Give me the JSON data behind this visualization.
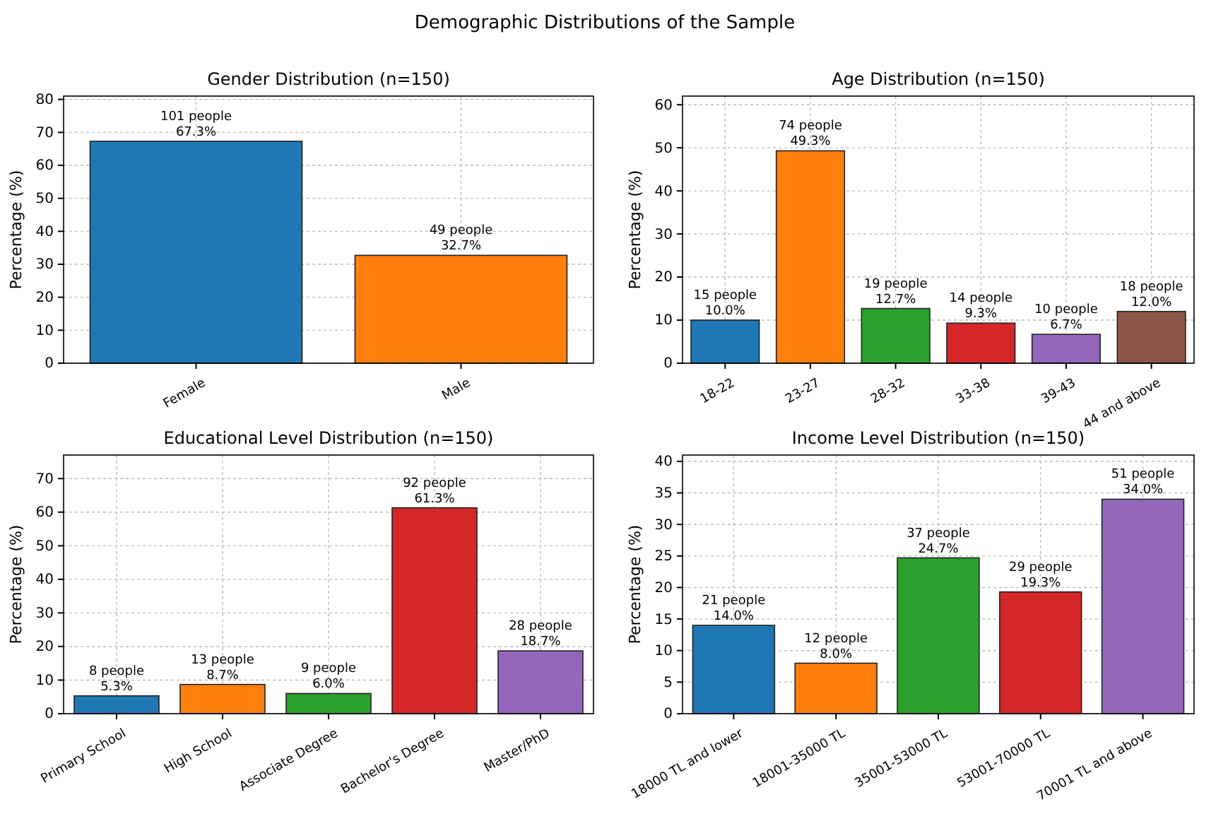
{
  "chart_data": [
    {
      "type": "bar",
      "title": "Gender Distribution (n=150)",
      "ylabel": "Percentage (%)",
      "annotations": [
        "Demographic Distributions of the Sample"
      ],
      "categories": [
        "Female",
        "Male"
      ],
      "values": [
        67.3,
        32.7
      ],
      "colors": [
        "#1f77b4",
        "#ff7f0e"
      ],
      "value_labels": [
        "101 people\n67.3%",
        "49 people\n32.7%"
      ],
      "ylim": [
        0,
        81
      ],
      "yticks": [
        0,
        10,
        20,
        30,
        40,
        50,
        60,
        70,
        80
      ],
      "grid": true
    },
    {
      "type": "bar",
      "title": "Age Distribution (n=150)",
      "ylabel": "Percentage (%)",
      "categories": [
        "18-22",
        "23-27",
        "28-32",
        "33-38",
        "39-43",
        "44 and above"
      ],
      "values": [
        10.0,
        49.3,
        12.7,
        9.3,
        6.7,
        12.0
      ],
      "colors": [
        "#1f77b4",
        "#ff7f0e",
        "#2ca02c",
        "#d62728",
        "#9467bd",
        "#8c564b"
      ],
      "value_labels": [
        "15 people\n10.0%",
        "74 people\n49.3%",
        "19 people\n12.7%",
        "14 people\n9.3%",
        "10 people\n6.7%",
        "18 people\n12.0%"
      ],
      "ylim": [
        0,
        62
      ],
      "yticks": [
        0,
        10,
        20,
        30,
        40,
        50,
        60
      ],
      "grid": true
    },
    {
      "type": "bar",
      "title": "Educational Level Distribution (n=150)",
      "ylabel": "Percentage (%)",
      "categories": [
        "Primary School",
        "High School",
        "Associate Degree",
        "Bachelor's Degree",
        "Master/PhD"
      ],
      "values": [
        5.3,
        8.7,
        6.0,
        61.3,
        18.7
      ],
      "colors": [
        "#1f77b4",
        "#ff7f0e",
        "#2ca02c",
        "#d62728",
        "#9467bd"
      ],
      "value_labels": [
        "8 people\n5.3%",
        "13 people\n8.7%",
        "9 people\n6.0%",
        "92 people\n61.3%",
        "28 people\n18.7%"
      ],
      "ylim": [
        0,
        77
      ],
      "yticks": [
        0,
        10,
        20,
        30,
        40,
        50,
        60,
        70
      ],
      "grid": true
    },
    {
      "type": "bar",
      "title": "Income Level Distribution (n=150)",
      "ylabel": "Percentage (%)",
      "categories": [
        "18000 TL and lower",
        "18001-35000 TL",
        "35001-53000 TL",
        "53001-70000 TL",
        "70001 TL and above"
      ],
      "values": [
        14.0,
        8.0,
        24.7,
        19.3,
        34.0
      ],
      "colors": [
        "#1f77b4",
        "#ff7f0e",
        "#2ca02c",
        "#d62728",
        "#9467bd"
      ],
      "value_labels": [
        "21 people\n14.0%",
        "12 people\n8.0%",
        "37 people\n24.7%",
        "29 people\n19.3%",
        "51 people\n34.0%"
      ],
      "ylim": [
        0,
        41
      ],
      "yticks": [
        0,
        5,
        10,
        15,
        20,
        25,
        30,
        35,
        40
      ],
      "grid": true
    }
  ]
}
